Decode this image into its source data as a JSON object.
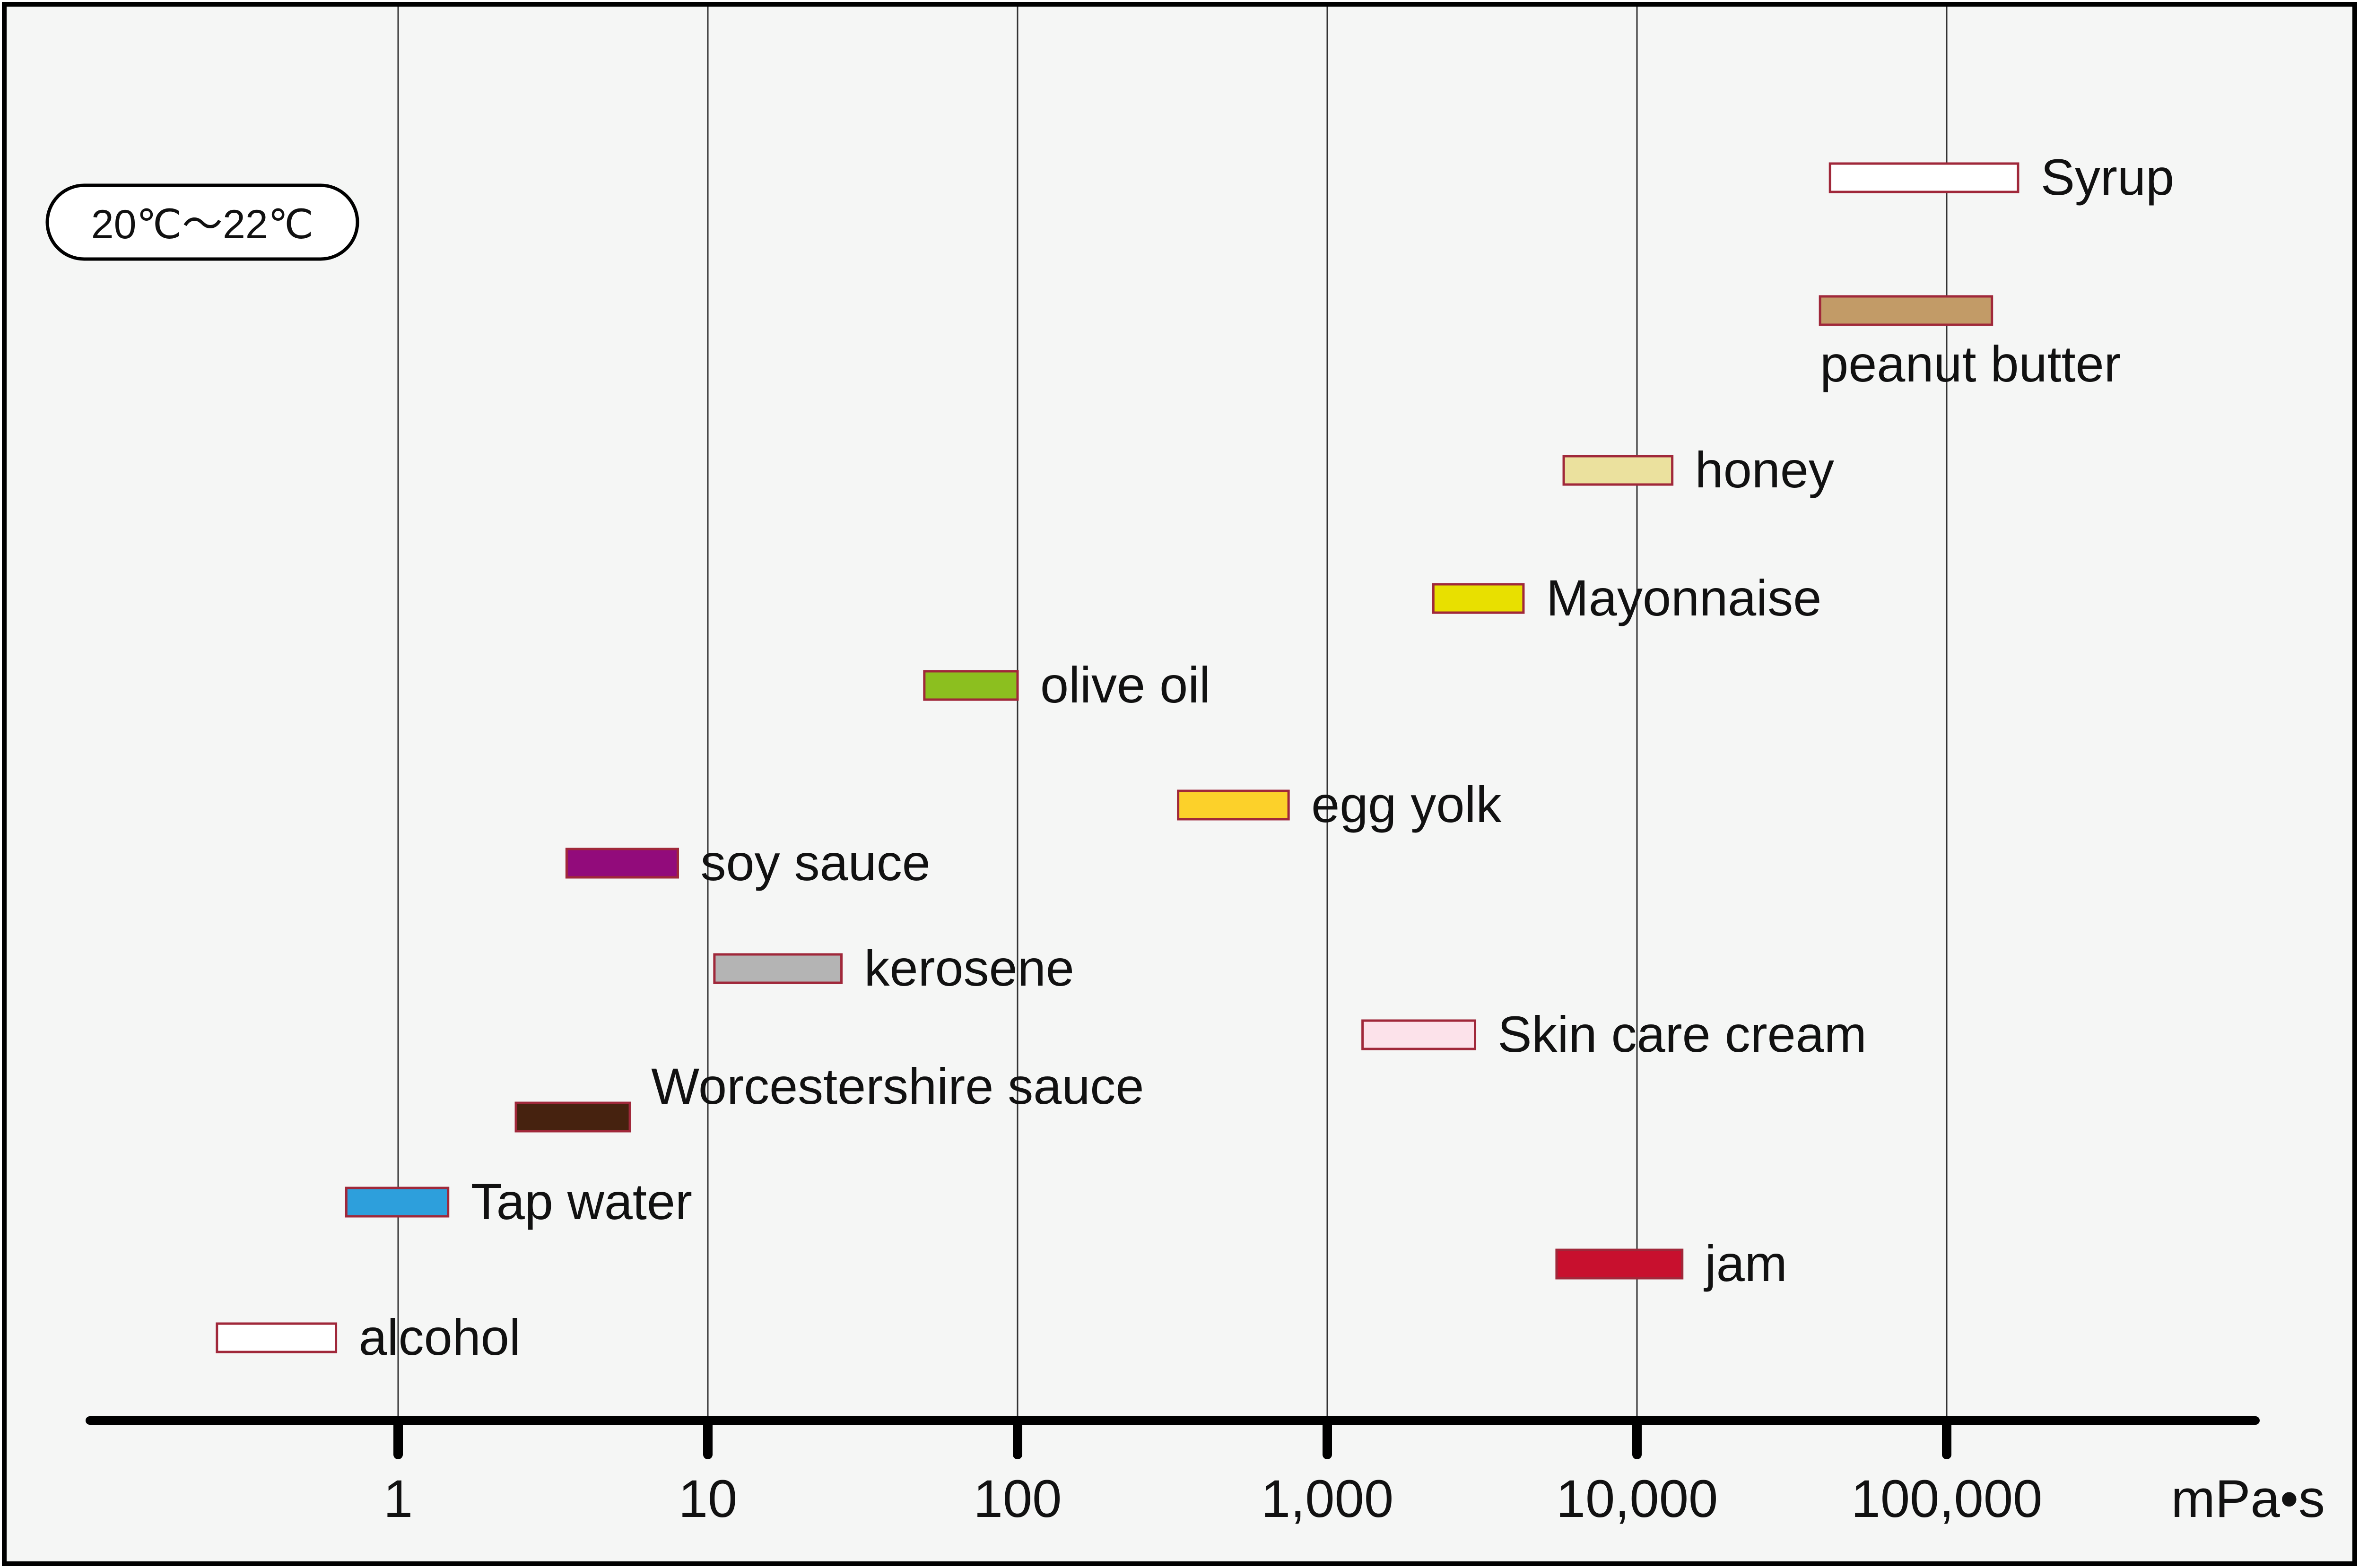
{
  "chart_data": {
    "type": "bar",
    "subtype": "range",
    "x_scale": "log",
    "x_ticks": [
      {
        "value": 1,
        "label": "1"
      },
      {
        "value": 10,
        "label": "10"
      },
      {
        "value": 100,
        "label": "100"
      },
      {
        "value": 1000,
        "label": "1,000"
      },
      {
        "value": 10000,
        "label": "10,000"
      },
      {
        "value": 100000,
        "label": "100,000"
      }
    ],
    "x_unit": "mPa•s",
    "xlim": [
      0.05,
      3000000
    ],
    "temperature_note": "20℃～22℃",
    "grid": true,
    "series": [
      {
        "name": "Syrup",
        "low": 42000,
        "high": 170000,
        "fill": "#ffffff",
        "label_side": "right"
      },
      {
        "name": "peanut butter",
        "low": 39000,
        "high": 140000,
        "fill": "#c29b67",
        "label_side": "below"
      },
      {
        "name": "honey",
        "low": 5800,
        "high": 13000,
        "fill": "#ebe19e",
        "label_side": "right"
      },
      {
        "name": "Mayonnaise",
        "low": 2200,
        "high": 4300,
        "fill": "#e8e000",
        "label_side": "right"
      },
      {
        "name": "olive oil",
        "low": 50,
        "high": 100,
        "fill": "#8cbf1f",
        "label_side": "right"
      },
      {
        "name": "egg yolk",
        "low": 330,
        "high": 750,
        "fill": "#fcd12a",
        "label_side": "right"
      },
      {
        "name": "soy sauce",
        "low": 3.5,
        "high": 8,
        "fill": "#920b7b",
        "label_side": "right"
      },
      {
        "name": "kerosene",
        "low": 10.5,
        "high": 27,
        "fill": "#b4b4b4",
        "label_side": "right"
      },
      {
        "name": "Skin care cream",
        "low": 1300,
        "high": 3000,
        "fill": "#fce2ea",
        "label_side": "right"
      },
      {
        "name": "Worcestershire sauce",
        "low": 2.4,
        "high": 5.6,
        "fill": "#46220f",
        "label_side": "above-right"
      },
      {
        "name": "Tap water",
        "low": 0.68,
        "high": 1.45,
        "fill": "#2d9fdc",
        "label_side": "right"
      },
      {
        "name": "jam",
        "low": 5500,
        "high": 14000,
        "fill": "#c8102e",
        "label_side": "right"
      },
      {
        "name": "alcohol",
        "low": 0.26,
        "high": 0.63,
        "fill": "#ffffff",
        "label_side": "right"
      }
    ],
    "colors": {
      "background": "#f5f6f5",
      "bar_border": "#a0283a",
      "grid": "#333333",
      "axis": "#000000"
    }
  }
}
